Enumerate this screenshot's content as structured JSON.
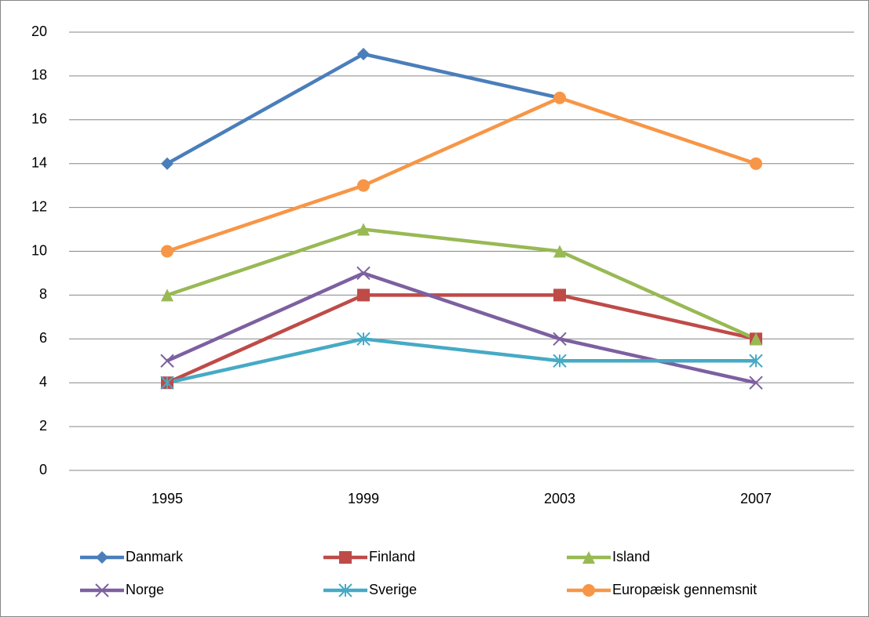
{
  "chart_data": {
    "type": "line",
    "categories": [
      "1995",
      "1999",
      "2003",
      "2007"
    ],
    "series": [
      {
        "name": "Danmark",
        "color": "#4a7ebb",
        "marker": "diamond",
        "values": [
          14,
          19,
          17,
          null
        ]
      },
      {
        "name": "Finland",
        "color": "#be4b48",
        "marker": "square",
        "values": [
          4,
          8,
          8,
          6
        ]
      },
      {
        "name": "Island",
        "color": "#98b954",
        "marker": "triangle",
        "values": [
          8,
          11,
          10,
          6
        ]
      },
      {
        "name": "Norge",
        "color": "#7d60a0",
        "marker": "x",
        "values": [
          5,
          9,
          6,
          4
        ]
      },
      {
        "name": "Sverige",
        "color": "#46aac5",
        "marker": "star",
        "values": [
          4,
          6,
          5,
          5
        ]
      },
      {
        "name": "Europæisk gennemsnit",
        "color": "#f79646",
        "marker": "circle",
        "values": [
          10,
          13,
          17,
          14
        ]
      }
    ],
    "ylim": [
      0,
      20
    ],
    "yticks": [
      0,
      2,
      4,
      6,
      8,
      10,
      12,
      14,
      16,
      18,
      20
    ],
    "grid": true,
    "legend": "bottom"
  }
}
